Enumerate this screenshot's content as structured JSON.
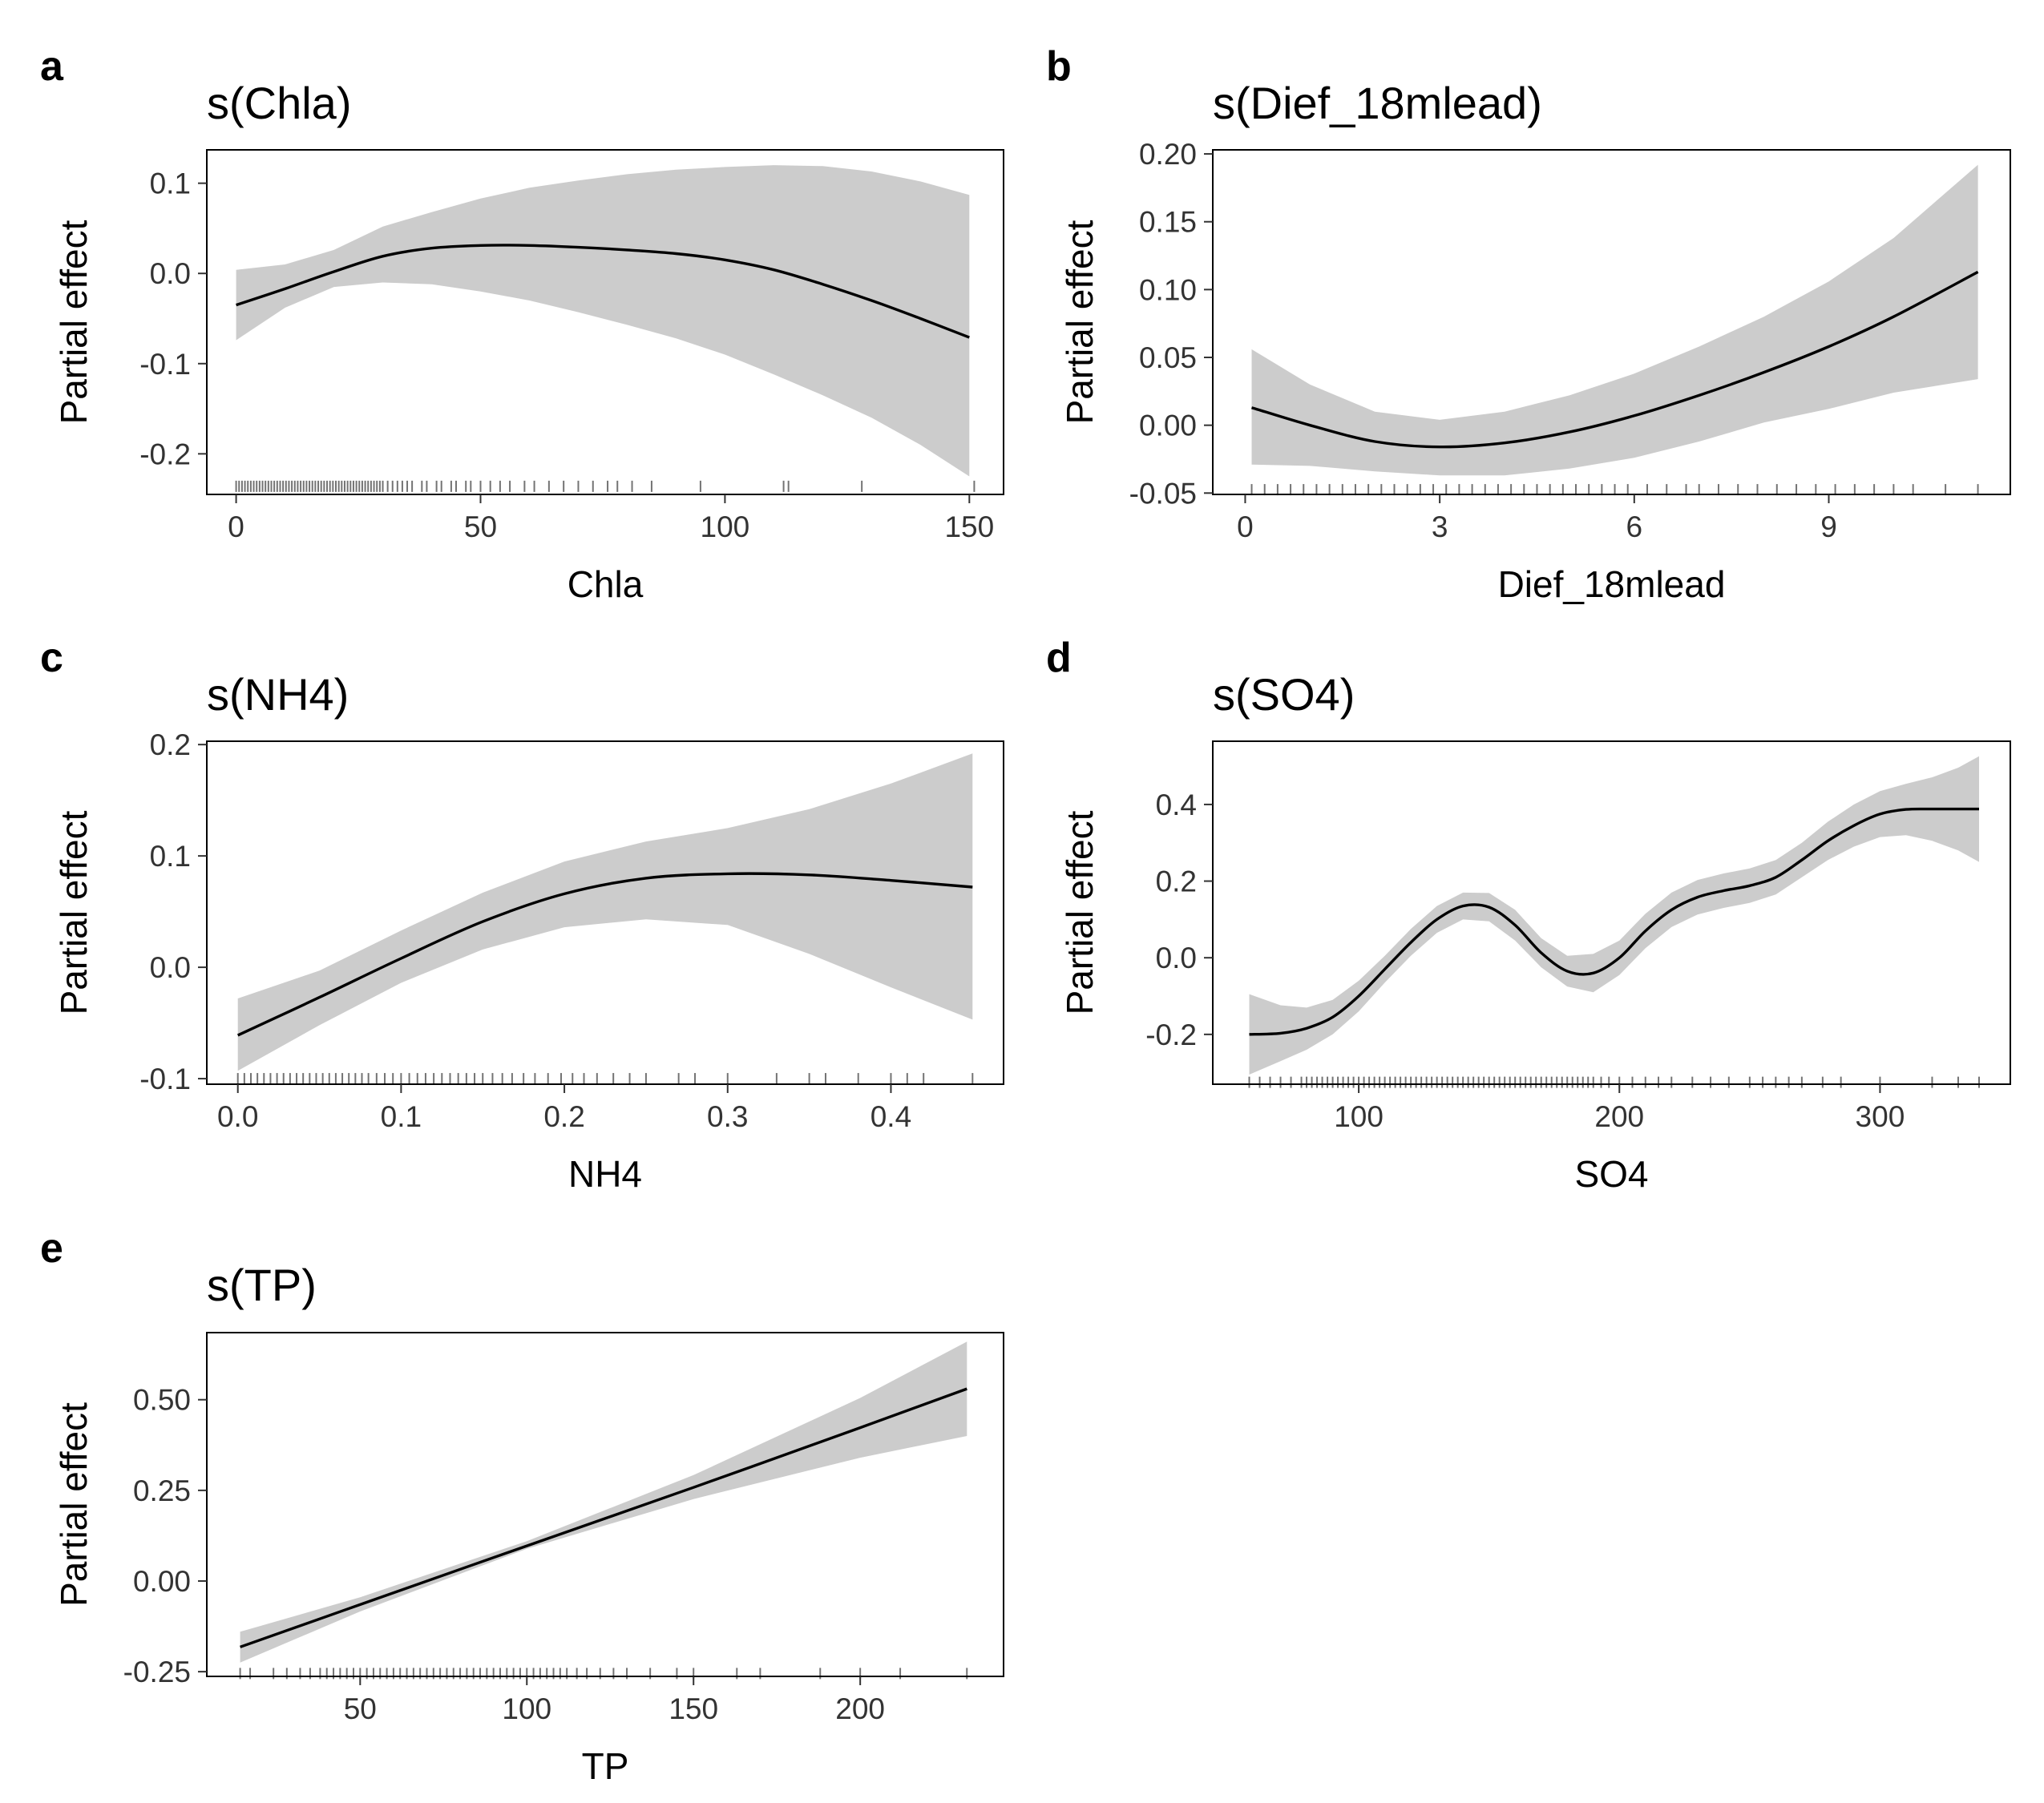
{
  "chart_data": [
    {
      "panel": "a",
      "type": "line",
      "title": "s(Chla)",
      "xlabel": "Chla",
      "ylabel": "Partial effect",
      "xlim": [
        -6,
        157
      ],
      "ylim": [
        -0.245,
        0.137
      ],
      "xticks": [
        0,
        50,
        100,
        150
      ],
      "xtick_labels": [
        "0",
        "50",
        "100",
        "150"
      ],
      "yticks": [
        0.1,
        0.0,
        -0.1,
        -0.2
      ],
      "ytick_labels": [
        "0.1",
        "0.0",
        "-0.1",
        "-0.2"
      ],
      "rug_y": -0.236,
      "series": [
        {
          "x": [
            0,
            10,
            20,
            30,
            40,
            50,
            60,
            70,
            80,
            90,
            100,
            110,
            120,
            130,
            140,
            150
          ],
          "y": [
            -0.035,
            -0.017,
            0.002,
            0.019,
            0.028,
            0.031,
            0.031,
            0.029,
            0.026,
            0.022,
            0.015,
            0.004,
            -0.012,
            -0.03,
            -0.05,
            -0.071
          ],
          "lower": [
            -0.074,
            -0.038,
            -0.015,
            -0.01,
            -0.012,
            -0.02,
            -0.03,
            -0.043,
            -0.057,
            -0.072,
            -0.09,
            -0.112,
            -0.135,
            -0.16,
            -0.19,
            -0.225
          ],
          "upper": [
            0.004,
            0.01,
            0.026,
            0.052,
            0.068,
            0.083,
            0.095,
            0.103,
            0.11,
            0.115,
            0.118,
            0.12,
            0.119,
            0.113,
            0.102,
            0.087
          ]
        }
      ],
      "rug": [
        0,
        0.6,
        1.2,
        1.8,
        2.4,
        3,
        3.6,
        4.2,
        4.8,
        5.4,
        6,
        6.6,
        7.2,
        7.8,
        8.4,
        9,
        9.6,
        10.2,
        10.8,
        11.4,
        12,
        12.6,
        13.2,
        13.8,
        14.4,
        15,
        15.6,
        16.2,
        16.8,
        17.4,
        18,
        18.6,
        19.2,
        19.8,
        20.4,
        21,
        21.6,
        22.2,
        22.8,
        23.4,
        24,
        24.6,
        25.2,
        25.8,
        26.4,
        27,
        27.6,
        28.2,
        28.8,
        29.4,
        30,
        31,
        32,
        33,
        34,
        35,
        36,
        38,
        39,
        41,
        42,
        44,
        45,
        47,
        48,
        50,
        52,
        54,
        56,
        59,
        61,
        64,
        67,
        70,
        73,
        76,
        78,
        81,
        85,
        95,
        112,
        113,
        128,
        151
      ]
    },
    {
      "panel": "b",
      "type": "line",
      "title": "s(Dief_18mlead)",
      "xlabel": "Dief_18mlead",
      "ylabel": "Partial effect",
      "xlim": [
        -0.5,
        11.8
      ],
      "ylim": [
        -0.051,
        0.203
      ],
      "xticks": [
        0,
        3,
        6,
        9
      ],
      "xtick_labels": [
        "0",
        "3",
        "6",
        "9"
      ],
      "yticks": [
        0.2,
        0.15,
        0.1,
        0.05,
        0.0,
        -0.05
      ],
      "ytick_labels": [
        "0.20",
        "0.15",
        "0.10",
        "0.05",
        "0.00",
        "-0.05"
      ],
      "rug_y": -0.0475,
      "series": [
        {
          "x": [
            0.1,
            1,
            2,
            3,
            4,
            5,
            6,
            7,
            8,
            9,
            10,
            11.3
          ],
          "y": [
            0.013,
            0.0,
            -0.012,
            -0.016,
            -0.013,
            -0.005,
            0.007,
            0.022,
            0.039,
            0.058,
            0.08,
            0.113
          ],
          "lower": [
            -0.029,
            -0.03,
            -0.034,
            -0.037,
            -0.037,
            -0.032,
            -0.024,
            -0.012,
            0.002,
            0.012,
            0.024,
            0.034
          ],
          "upper": [
            0.056,
            0.03,
            0.01,
            0.004,
            0.01,
            0.022,
            0.038,
            0.058,
            0.08,
            0.106,
            0.138,
            0.192
          ]
        }
      ],
      "rug": [
        0.1,
        0.3,
        0.5,
        0.7,
        0.9,
        1.1,
        1.3,
        1.5,
        1.7,
        1.9,
        2.1,
        2.3,
        2.5,
        2.7,
        2.9,
        3.1,
        3.3,
        3.5,
        3.7,
        3.9,
        4.1,
        4.3,
        4.5,
        4.7,
        4.9,
        5.1,
        5.3,
        5.5,
        5.7,
        5.9,
        6.2,
        6.5,
        6.8,
        7.0,
        7.3,
        7.6,
        7.9,
        8.2,
        8.5,
        8.8,
        9.1,
        9.4,
        9.7,
        10.0,
        10.3,
        10.8,
        11.3
      ]
    },
    {
      "panel": "c",
      "type": "line",
      "title": "s(NH4)",
      "xlabel": "NH4",
      "ylabel": "Partial effect",
      "xlim": [
        -0.019,
        0.469
      ],
      "ylim": [
        -0.105,
        0.203
      ],
      "xticks": [
        0.0,
        0.1,
        0.2,
        0.3,
        0.4
      ],
      "xtick_labels": [
        "0.0",
        "0.1",
        "0.2",
        "0.3",
        "0.4"
      ],
      "yticks": [
        0.2,
        0.1,
        0.0,
        -0.1
      ],
      "ytick_labels": [
        "0.2",
        "0.1",
        "0.0",
        "-0.1"
      ],
      "rug_y": -0.1,
      "series": [
        {
          "x": [
            0,
            0.05,
            0.1,
            0.15,
            0.2,
            0.25,
            0.3,
            0.35,
            0.4,
            0.45
          ],
          "y": [
            -0.061,
            -0.027,
            0.008,
            0.041,
            0.066,
            0.08,
            0.084,
            0.083,
            0.078,
            0.072
          ],
          "lower": [
            -0.093,
            -0.052,
            -0.014,
            0.016,
            0.036,
            0.043,
            0.038,
            0.012,
            -0.018,
            -0.047
          ],
          "upper": [
            -0.028,
            -0.003,
            0.033,
            0.067,
            0.095,
            0.113,
            0.125,
            0.142,
            0.165,
            0.192
          ]
        }
      ],
      "rug": [
        0,
        0.004,
        0.008,
        0.012,
        0.016,
        0.02,
        0.024,
        0.028,
        0.032,
        0.036,
        0.04,
        0.044,
        0.048,
        0.052,
        0.056,
        0.06,
        0.064,
        0.068,
        0.072,
        0.076,
        0.08,
        0.085,
        0.09,
        0.095,
        0.1,
        0.105,
        0.11,
        0.115,
        0.12,
        0.125,
        0.13,
        0.135,
        0.14,
        0.145,
        0.15,
        0.156,
        0.162,
        0.168,
        0.175,
        0.182,
        0.19,
        0.198,
        0.205,
        0.212,
        0.22,
        0.23,
        0.24,
        0.25,
        0.27,
        0.28,
        0.3,
        0.33,
        0.35,
        0.36,
        0.38,
        0.4,
        0.41,
        0.42,
        0.45
      ]
    },
    {
      "panel": "d",
      "type": "line",
      "title": "s(SO4)",
      "xlabel": "SO4",
      "ylabel": "Partial effect",
      "xlim": [
        44,
        350
      ],
      "ylim": [
        -0.33,
        0.565
      ],
      "xticks": [
        100,
        200,
        300
      ],
      "xtick_labels": [
        "100",
        "200",
        "300"
      ],
      "yticks": [
        0.4,
        0.2,
        0.0,
        -0.2
      ],
      "ytick_labels": [
        "0.4",
        "0.2",
        "0.0",
        "-0.2"
      ],
      "rug_y": -0.325,
      "series": [
        {
          "x": [
            58,
            70,
            80,
            90,
            100,
            110,
            120,
            130,
            140,
            150,
            160,
            170,
            180,
            190,
            200,
            210,
            220,
            230,
            240,
            250,
            260,
            270,
            280,
            290,
            300,
            310,
            320,
            330,
            338
          ],
          "y": [
            -0.2,
            -0.197,
            -0.184,
            -0.155,
            -0.1,
            -0.03,
            0.04,
            0.1,
            0.135,
            0.132,
            0.085,
            0.013,
            -0.035,
            -0.04,
            0.0,
            0.07,
            0.125,
            0.158,
            0.175,
            0.188,
            0.21,
            0.255,
            0.305,
            0.345,
            0.375,
            0.387,
            0.388,
            0.388,
            0.388
          ],
          "lower": [
            -0.305,
            -0.27,
            -0.24,
            -0.2,
            -0.14,
            -0.065,
            0.005,
            0.065,
            0.1,
            0.095,
            0.045,
            -0.025,
            -0.075,
            -0.09,
            -0.045,
            0.025,
            0.08,
            0.113,
            0.13,
            0.143,
            0.165,
            0.21,
            0.255,
            0.29,
            0.315,
            0.32,
            0.305,
            0.28,
            0.25
          ],
          "upper": [
            -0.095,
            -0.124,
            -0.13,
            -0.11,
            -0.06,
            0.005,
            0.075,
            0.135,
            0.17,
            0.169,
            0.125,
            0.051,
            0.005,
            0.01,
            0.045,
            0.115,
            0.17,
            0.203,
            0.22,
            0.233,
            0.255,
            0.3,
            0.355,
            0.4,
            0.435,
            0.454,
            0.471,
            0.496,
            0.526
          ]
        }
      ],
      "rug": [
        58,
        62,
        66,
        70,
        74,
        78,
        80,
        82,
        84,
        86,
        88,
        90,
        92,
        94,
        96,
        98,
        100,
        102,
        104,
        106,
        108,
        110,
        112,
        114,
        116,
        118,
        120,
        122,
        124,
        126,
        128,
        130,
        132,
        134,
        136,
        138,
        140,
        142,
        144,
        146,
        148,
        150,
        152,
        154,
        156,
        158,
        160,
        162,
        164,
        166,
        168,
        170,
        172,
        174,
        176,
        178,
        180,
        182,
        184,
        186,
        188,
        190,
        193,
        196,
        200,
        205,
        210,
        215,
        220,
        228,
        235,
        242,
        250,
        255,
        260,
        265,
        270,
        278,
        285,
        300,
        320,
        330,
        338
      ]
    },
    {
      "panel": "e",
      "type": "line",
      "title": "s(TP)",
      "xlabel": "TP",
      "ylabel": "Partial effect",
      "xlim": [
        4,
        243
      ],
      "ylim": [
        -0.263,
        0.685
      ],
      "xticks": [
        50,
        100,
        150,
        200
      ],
      "xtick_labels": [
        "50",
        "100",
        "150",
        "200"
      ],
      "yticks": [
        0.5,
        0.25,
        0.0,
        -0.25
      ],
      "ytick_labels": [
        "0.50",
        "0.25",
        "0.00",
        "-0.25"
      ],
      "rug_y": -0.255,
      "series": [
        {
          "x": [
            14,
            50,
            100,
            150,
            200,
            232
          ],
          "y": [
            -0.182,
            -0.065,
            0.097,
            0.258,
            0.423,
            0.53
          ],
          "lower": [
            -0.225,
            -0.084,
            0.089,
            0.226,
            0.34,
            0.4
          ],
          "upper": [
            -0.14,
            -0.045,
            0.11,
            0.292,
            0.505,
            0.66
          ]
        }
      ],
      "rug": [
        14,
        17,
        24,
        28,
        32,
        35,
        38,
        40,
        42,
        44,
        46,
        48,
        50,
        52,
        54,
        56,
        58,
        60,
        62,
        64,
        66,
        68,
        70,
        72,
        74,
        76,
        78,
        80,
        82,
        84,
        86,
        88,
        90,
        92,
        94,
        96,
        98,
        100,
        102,
        104,
        106,
        108,
        110,
        112,
        115,
        118,
        122,
        126,
        130,
        137,
        145,
        150,
        163,
        170,
        188,
        200,
        212,
        232
      ]
    }
  ]
}
